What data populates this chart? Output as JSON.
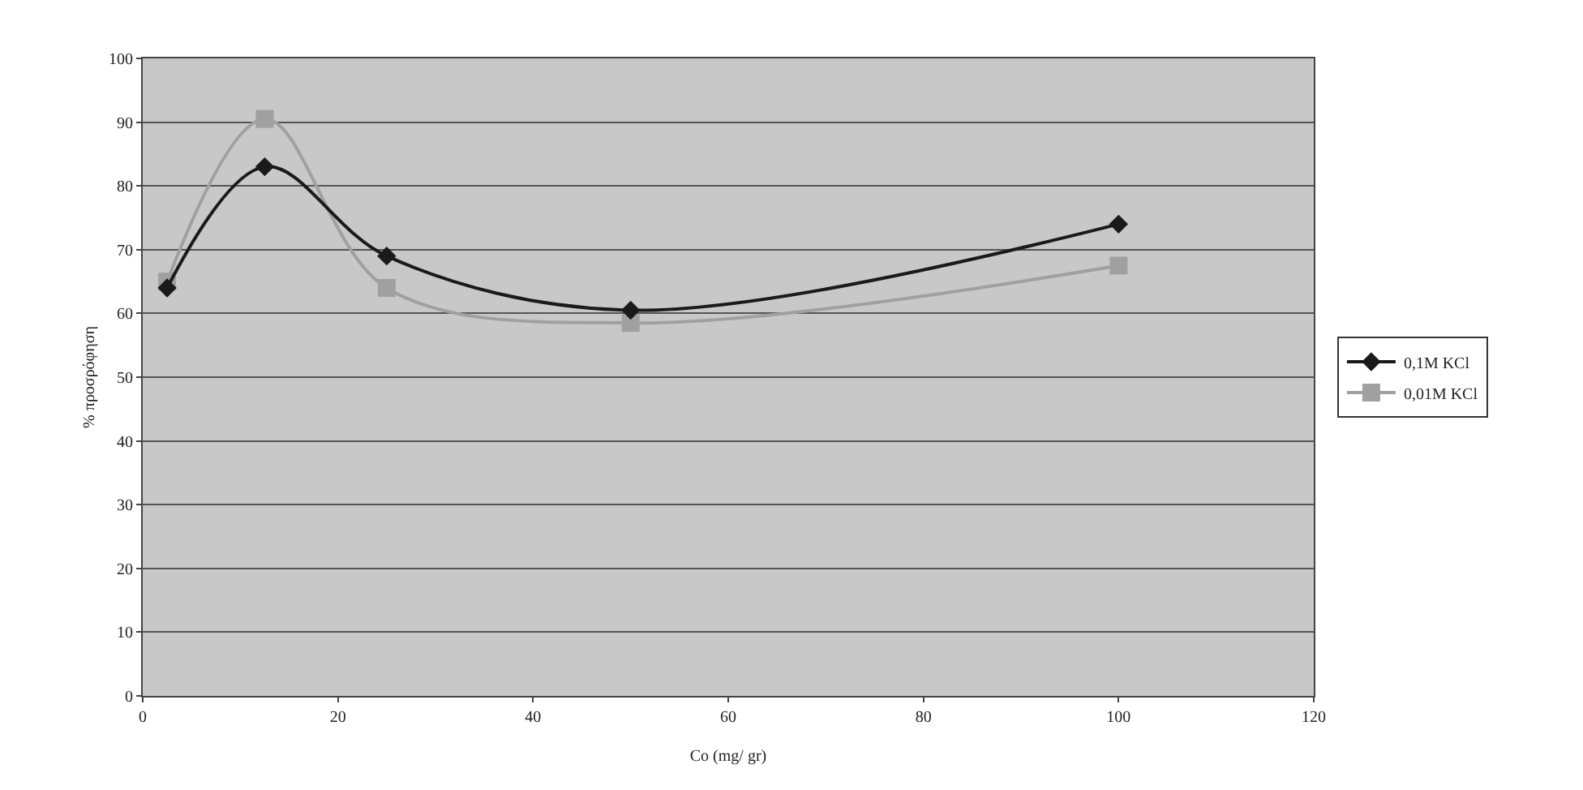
{
  "chart_data": {
    "type": "line",
    "xlabel": "Co (mg/ gr)",
    "ylabel": "% προσρόφηση",
    "series": [
      {
        "name": "0,1M KCl",
        "color": "#1a1a1a",
        "marker": "diamond",
        "x": [
          2.5,
          12.5,
          25,
          50,
          100
        ],
        "values": [
          64,
          83,
          69,
          60.5,
          74
        ]
      },
      {
        "name": "0,01M KCl",
        "color": "#a0a0a0",
        "marker": "square",
        "x": [
          2.5,
          12.5,
          25,
          50,
          100
        ],
        "values": [
          65,
          90.5,
          64,
          58.5,
          67.5
        ]
      }
    ],
    "xlim": [
      0,
      120
    ],
    "xticks": [
      0,
      20,
      40,
      60,
      80,
      100,
      120
    ],
    "ylim": [
      0,
      100
    ],
    "yticks": [
      0,
      10,
      20,
      30,
      40,
      50,
      60,
      70,
      80,
      90,
      100
    ],
    "grid": "y",
    "legend": "right"
  }
}
